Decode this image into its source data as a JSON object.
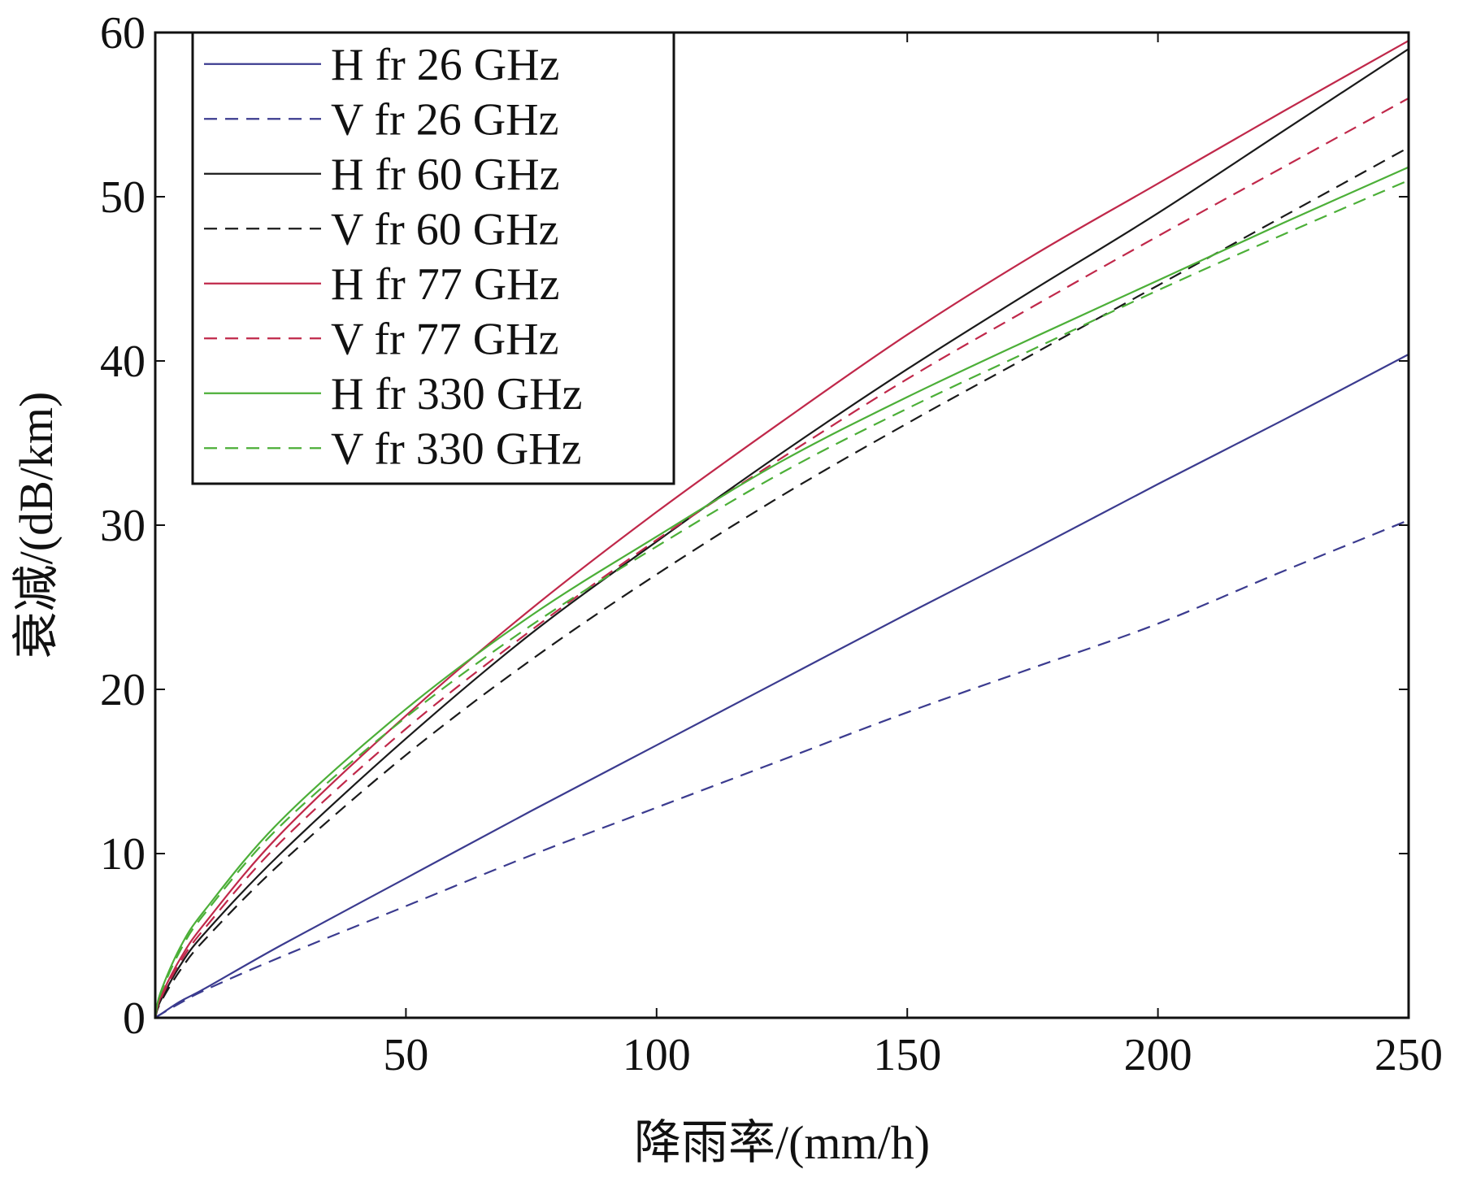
{
  "chart_data": {
    "type": "line",
    "title": "",
    "xlabel": "降雨率/(mm/h)",
    "ylabel": "衰减/(dB/km)",
    "xlim": [
      0,
      250
    ],
    "ylim": [
      0,
      60
    ],
    "xticks": [
      50,
      100,
      150,
      200,
      250
    ],
    "yticks": [
      0,
      10,
      20,
      30,
      40,
      50,
      60
    ],
    "grid": false,
    "legend_position": "top-left",
    "x": [
      0,
      1,
      5,
      10,
      25,
      50,
      75,
      100,
      125,
      150,
      175,
      200,
      225,
      250
    ],
    "series": [
      {
        "name": "H fr 26 GHz",
        "color": "#3b3b8f",
        "dash": "solid",
        "values": [
          0,
          0.2,
          1.0,
          1.8,
          4.4,
          8.5,
          12.6,
          16.6,
          20.6,
          24.6,
          28.5,
          32.5,
          36.4,
          40.4
        ]
      },
      {
        "name": "V fr 26 GHz",
        "color": "#3b3b8f",
        "dash": "dashed",
        "values": [
          0,
          0.2,
          0.9,
          1.7,
          3.7,
          6.8,
          9.9,
          12.8,
          15.7,
          18.6,
          21.3,
          24.0,
          27.2,
          30.3
        ]
      },
      {
        "name": "H fr 60 GHz",
        "color": "#1a1a1a",
        "dash": "solid",
        "values": [
          0,
          1.0,
          3.2,
          5.2,
          10.0,
          17.0,
          23.4,
          29.0,
          34.4,
          39.5,
          44.3,
          49.0,
          54.0,
          59.0
        ]
      },
      {
        "name": "V fr 60 GHz",
        "color": "#1a1a1a",
        "dash": "dashed",
        "values": [
          0,
          0.9,
          2.9,
          4.8,
          9.4,
          16.0,
          21.8,
          27.0,
          31.8,
          36.2,
          40.4,
          44.6,
          48.8,
          53.0
        ]
      },
      {
        "name": "H fr 77 GHz",
        "color": "#c0284a",
        "dash": "solid",
        "values": [
          0,
          1.2,
          3.6,
          5.8,
          11.2,
          18.4,
          24.9,
          30.8,
          36.3,
          41.6,
          46.4,
          50.8,
          55.2,
          59.5
        ]
      },
      {
        "name": "V fr 77 GHz",
        "color": "#c0284a",
        "dash": "dashed",
        "values": [
          0,
          1.1,
          3.4,
          5.5,
          10.7,
          17.6,
          23.6,
          29.1,
          34.1,
          38.9,
          43.3,
          47.6,
          51.8,
          56.0
        ]
      },
      {
        "name": "H fr 330 GHz",
        "color": "#4caf38",
        "dash": "solid",
        "values": [
          0,
          1.5,
          4.3,
          6.6,
          12.0,
          18.8,
          24.5,
          29.3,
          33.9,
          37.8,
          41.4,
          44.9,
          48.4,
          51.8
        ]
      },
      {
        "name": "V fr 330 GHz",
        "color": "#4caf38",
        "dash": "dashed",
        "values": [
          0,
          1.4,
          4.1,
          6.4,
          11.7,
          18.3,
          23.9,
          28.7,
          33.2,
          37.1,
          40.7,
          44.3,
          47.7,
          51.0
        ]
      }
    ]
  }
}
